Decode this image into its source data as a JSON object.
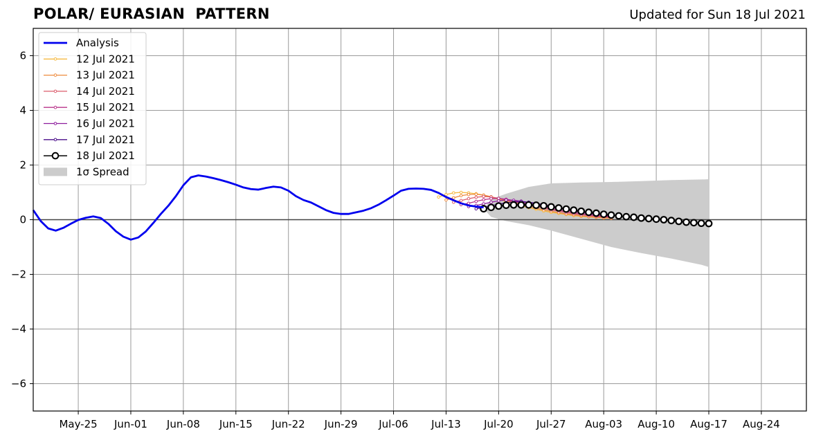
{
  "chart_data": {
    "type": "line",
    "title": "POLAR/ EURASIAN  PATTERN",
    "subtitle": "Updated for Sun 18 Jul 2021",
    "xlabel": "",
    "ylabel": "",
    "xlim": [
      "2021-05-19",
      "2021-08-30"
    ],
    "ylim": [
      -7,
      7
    ],
    "x_ticks": [
      "May-25",
      "Jun-01",
      "Jun-08",
      "Jun-15",
      "Jun-22",
      "Jun-29",
      "Jul-06",
      "Jul-13",
      "Jul-20",
      "Jul-27",
      "Aug-03",
      "Aug-10",
      "Aug-17",
      "Aug-24"
    ],
    "y_ticks": [
      -6,
      -4,
      -2,
      0,
      2,
      4,
      6
    ],
    "y_tick_labels": [
      "−6",
      "−4",
      "−2",
      "0",
      "2",
      "4",
      "6"
    ],
    "grid": true,
    "legend_position": "top-left",
    "zero_line": 0,
    "analysis": {
      "name": "Analysis",
      "color": "#0000ee",
      "x": [
        "2021-05-19",
        "2021-05-20",
        "2021-05-21",
        "2021-05-22",
        "2021-05-23",
        "2021-05-24",
        "2021-05-25",
        "2021-05-26",
        "2021-05-27",
        "2021-05-28",
        "2021-05-29",
        "2021-05-30",
        "2021-05-31",
        "2021-06-01",
        "2021-06-02",
        "2021-06-03",
        "2021-06-04",
        "2021-06-05",
        "2021-06-06",
        "2021-06-07",
        "2021-06-08",
        "2021-06-09",
        "2021-06-10",
        "2021-06-11",
        "2021-06-12",
        "2021-06-13",
        "2021-06-14",
        "2021-06-15",
        "2021-06-16",
        "2021-06-17",
        "2021-06-18",
        "2021-06-19",
        "2021-06-20",
        "2021-06-21",
        "2021-06-22",
        "2021-06-23",
        "2021-06-24",
        "2021-06-25",
        "2021-06-26",
        "2021-06-27",
        "2021-06-28",
        "2021-06-29",
        "2021-06-30",
        "2021-07-01",
        "2021-07-02",
        "2021-07-03",
        "2021-07-04",
        "2021-07-05",
        "2021-07-06",
        "2021-07-07",
        "2021-07-08",
        "2021-07-09",
        "2021-07-10",
        "2021-07-11",
        "2021-07-12",
        "2021-07-13",
        "2021-07-14",
        "2021-07-15",
        "2021-07-16",
        "2021-07-17",
        "2021-07-18"
      ],
      "y": [
        0.35,
        -0.05,
        -0.32,
        -0.4,
        -0.3,
        -0.15,
        -0.01,
        0.07,
        0.12,
        0.06,
        -0.15,
        -0.42,
        -0.62,
        -0.73,
        -0.65,
        -0.43,
        -0.12,
        0.21,
        0.51,
        0.86,
        1.26,
        1.55,
        1.62,
        1.58,
        1.52,
        1.45,
        1.37,
        1.28,
        1.18,
        1.12,
        1.1,
        1.16,
        1.21,
        1.18,
        1.06,
        0.86,
        0.72,
        0.63,
        0.49,
        0.35,
        0.25,
        0.21,
        0.21,
        0.27,
        0.33,
        0.42,
        0.55,
        0.71,
        0.88,
        1.06,
        1.13,
        1.14,
        1.13,
        1.09,
        0.98,
        0.83,
        0.71,
        0.6,
        0.52,
        0.48,
        0.45
      ]
    },
    "forecasts": [
      {
        "name": "12 Jul 2021",
        "color": "#f5b940",
        "start": "2021-07-12",
        "values": [
          0.83,
          0.92,
          0.98,
          1.0,
          0.98,
          0.95,
          0.9,
          0.82,
          0.74,
          0.66,
          0.58,
          0.51,
          0.44,
          0.38,
          0.32,
          0.27,
          0.23,
          0.19,
          0.15,
          0.12,
          0.1,
          0.08,
          0.06,
          0.05
        ]
      },
      {
        "name": "13 Jul 2021",
        "color": "#ee8a3d",
        "start": "2021-07-13",
        "values": [
          0.72,
          0.8,
          0.88,
          0.92,
          0.93,
          0.9,
          0.84,
          0.77,
          0.7,
          0.63,
          0.56,
          0.49,
          0.42,
          0.36,
          0.31,
          0.26,
          0.21,
          0.18,
          0.14,
          0.11,
          0.09,
          0.07,
          0.05
        ]
      },
      {
        "name": "14 Jul 2021",
        "color": "#db5a6a",
        "start": "2021-07-14",
        "values": [
          0.64,
          0.7,
          0.77,
          0.82,
          0.85,
          0.83,
          0.78,
          0.72,
          0.66,
          0.6,
          0.54,
          0.48,
          0.42,
          0.36,
          0.31,
          0.26,
          0.22,
          0.18,
          0.15,
          0.12,
          0.1,
          0.08
        ]
      },
      {
        "name": "15 Jul 2021",
        "color": "#b8328a",
        "start": "2021-07-15",
        "values": [
          0.55,
          0.6,
          0.67,
          0.73,
          0.77,
          0.78,
          0.75,
          0.7,
          0.64,
          0.58,
          0.52,
          0.46,
          0.4,
          0.35,
          0.3,
          0.26,
          0.22,
          0.18,
          0.15,
          0.12,
          0.1
        ]
      },
      {
        "name": "16 Jul 2021",
        "color": "#8c1b9c",
        "start": "2021-07-16",
        "values": [
          0.48,
          0.52,
          0.58,
          0.64,
          0.69,
          0.72,
          0.71,
          0.68,
          0.63,
          0.57,
          0.52,
          0.46,
          0.41,
          0.36,
          0.31,
          0.27,
          0.23,
          0.19,
          0.16,
          0.13
        ]
      },
      {
        "name": "17 Jul 2021",
        "color": "#4a0c8a",
        "start": "2021-07-17",
        "values": [
          0.4,
          0.45,
          0.51,
          0.57,
          0.62,
          0.65,
          0.66,
          0.64,
          0.6,
          0.55,
          0.5,
          0.45,
          0.4,
          0.35,
          0.31,
          0.27,
          0.23,
          0.19,
          0.16
        ]
      },
      {
        "name": "18 Jul 2021",
        "color": "#000000",
        "start": "2021-07-18",
        "values": [
          0.4,
          0.45,
          0.5,
          0.53,
          0.54,
          0.54,
          0.54,
          0.53,
          0.51,
          0.47,
          0.43,
          0.39,
          0.35,
          0.31,
          0.27,
          0.24,
          0.2,
          0.17,
          0.14,
          0.11,
          0.09,
          0.06,
          0.04,
          0.02,
          0.0,
          -0.03,
          -0.06,
          -0.09,
          -0.11,
          -0.13,
          -0.14
        ]
      }
    ],
    "spread": {
      "name": "1σ Spread",
      "color": "#cccccc",
      "x": [
        "2021-07-18",
        "2021-07-19",
        "2021-07-21",
        "2021-07-24",
        "2021-07-27",
        "2021-07-31",
        "2021-08-04",
        "2021-08-08",
        "2021-08-12",
        "2021-08-16",
        "2021-08-17"
      ],
      "upper": [
        0.4,
        0.75,
        0.95,
        1.2,
        1.33,
        1.36,
        1.38,
        1.41,
        1.45,
        1.47,
        1.48
      ],
      "lower": [
        0.4,
        0.1,
        -0.05,
        -0.2,
        -0.4,
        -0.7,
        -1.0,
        -1.22,
        -1.42,
        -1.65,
        -1.73
      ]
    }
  }
}
